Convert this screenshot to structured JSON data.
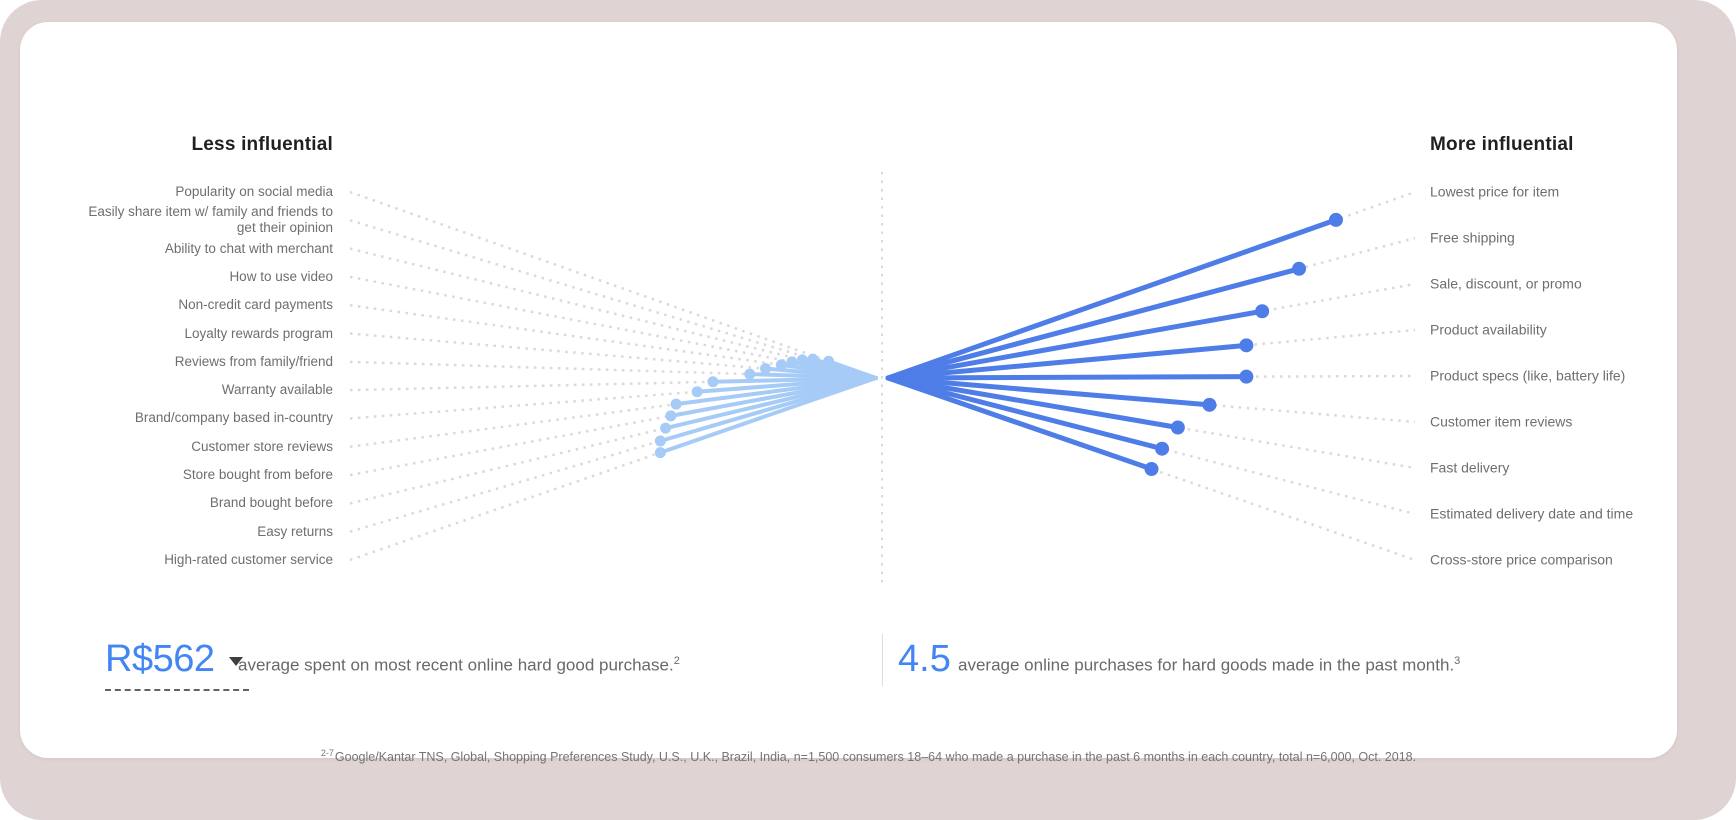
{
  "chart_data": {
    "type": "scatter",
    "subtype": "converging fan / ranked dot plot of purchase-decision influence",
    "title_left": "Less influential",
    "title_right": "More influential",
    "value_note": "influence = relative line length from center toward label, 0-1, estimated from pixels",
    "left_items": [
      {
        "label": "Popularity on social media",
        "influence": 0.09
      },
      {
        "label": "Easily share item w/ family and friends to get their opinion",
        "influence": 0.12
      },
      {
        "label": "Ability to chat with merchant",
        "influence": 0.14
      },
      {
        "label": "How to use video",
        "influence": 0.16
      },
      {
        "label": "Non-credit card payments",
        "influence": 0.18
      },
      {
        "label": "Loyalty rewards program",
        "influence": 0.21
      },
      {
        "label": "Reviews from family/friend",
        "influence": 0.24
      },
      {
        "label": "Warranty available",
        "influence": 0.31
      },
      {
        "label": "Brand/company based in-country",
        "influence": 0.34
      },
      {
        "label": "Customer store reviews",
        "influence": 0.38
      },
      {
        "label": "Store bought from before",
        "influence": 0.39
      },
      {
        "label": "Brand bought before",
        "influence": 0.4
      },
      {
        "label": "Easy returns",
        "influence": 0.41
      },
      {
        "label": "High-rated customer service",
        "influence": 0.41
      }
    ],
    "right_items": [
      {
        "label": "Lowest price for item",
        "influence": 0.85
      },
      {
        "label": "Free shipping",
        "influence": 0.78
      },
      {
        "label": "Sale, discount, or promo",
        "influence": 0.71
      },
      {
        "label": "Product availability",
        "influence": 0.68
      },
      {
        "label": "Product specs (like, battery life)",
        "influence": 0.68
      },
      {
        "label": "Customer item reviews",
        "influence": 0.61
      },
      {
        "label": "Fast delivery",
        "influence": 0.55
      },
      {
        "label": "Estimated delivery date and time",
        "influence": 0.52
      },
      {
        "label": "Cross-store price comparison",
        "influence": 0.5
      }
    ]
  },
  "stats": {
    "spend": {
      "value": "R$562",
      "description": "average spent on most recent online hard good purchase.",
      "footnote_ref": "2",
      "has_dropdown": true
    },
    "purchases": {
      "value": "4.5",
      "description": "average online purchases for hard goods made in the past month.",
      "footnote_ref": "3"
    }
  },
  "footnote": {
    "ref": "2-7",
    "text": "Google/Kantar TNS, Global, Shopping Preferences Study, U.S., U.K., Brazil, India, n=1,500 consumers 18–64 who made a purchase in the past 6 months in each country, total n=6,000, Oct. 2018."
  },
  "colors": {
    "accent_blue": "#4285F4",
    "fan_right_blue": "#4F7DE8",
    "fan_left_blue": "#A6CBF7",
    "dotted_gray": "#D9D9D9",
    "label_gray": "#6E6E6E",
    "background_pink": "#DFD3D3"
  }
}
